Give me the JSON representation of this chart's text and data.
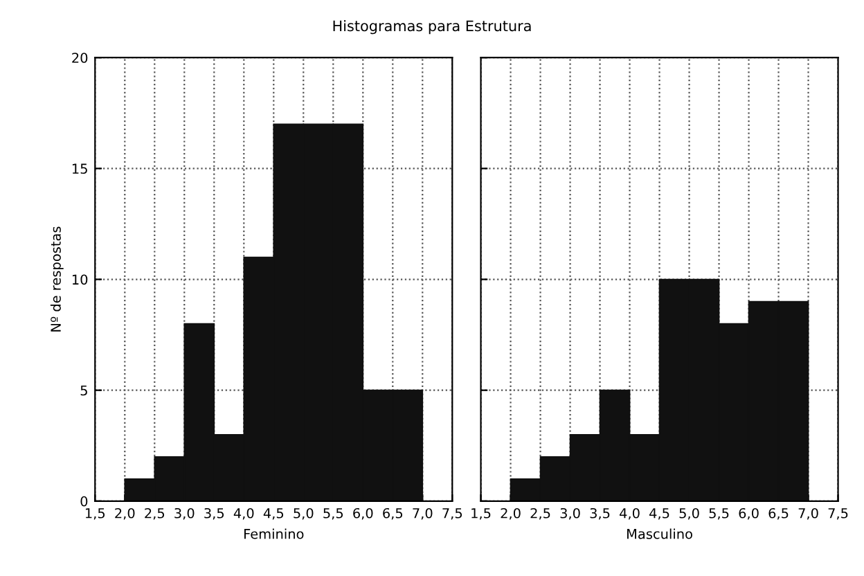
{
  "chart_data": [
    {
      "type": "histogram",
      "title": "Histogramas para Estrutura",
      "xlabel": "Feminino",
      "ylabel": "Nº de respostas",
      "bins": [
        1.5,
        2.0,
        2.5,
        3.0,
        3.5,
        4.0,
        4.5,
        5.0,
        5.5,
        6.0,
        6.5,
        7.0,
        7.5
      ],
      "values": [
        0,
        1,
        2,
        8,
        3,
        11,
        17,
        17,
        17,
        5,
        5,
        0
      ],
      "color": "#111111",
      "xlim": [
        1.5,
        7.5
      ],
      "xticks": [
        {
          "value": 1.5,
          "label": "1,5"
        },
        {
          "value": 2.0,
          "label": "2,0"
        },
        {
          "value": 2.5,
          "label": "2,5"
        },
        {
          "value": 3.0,
          "label": "3,0"
        },
        {
          "value": 3.5,
          "label": "3,5"
        },
        {
          "value": 4.0,
          "label": "4,0"
        },
        {
          "value": 4.5,
          "label": "4,5"
        },
        {
          "value": 5.0,
          "label": "5,0"
        },
        {
          "value": 5.5,
          "label": "5,5"
        },
        {
          "value": 6.0,
          "label": "6,0"
        },
        {
          "value": 6.5,
          "label": "6,5"
        },
        {
          "value": 7.0,
          "label": "7,0"
        },
        {
          "value": 7.5,
          "label": "7,5"
        }
      ],
      "ylim": [
        0,
        20
      ],
      "yticks": [
        0,
        5,
        10,
        15,
        20
      ],
      "grid": true
    },
    {
      "type": "histogram",
      "xlabel": "Masculino",
      "bins": [
        1.5,
        2.0,
        2.5,
        3.0,
        3.5,
        4.0,
        4.5,
        5.0,
        5.5,
        6.0,
        6.5,
        7.0,
        7.5
      ],
      "values": [
        0,
        1,
        2,
        3,
        5,
        3,
        10,
        10,
        8,
        9,
        9,
        0
      ],
      "color": "#111111",
      "xlim": [
        1.5,
        7.5
      ],
      "xticks": [
        {
          "value": 1.5,
          "label": "1,5"
        },
        {
          "value": 2.0,
          "label": "2,0"
        },
        {
          "value": 2.5,
          "label": "2,5"
        },
        {
          "value": 3.0,
          "label": "3,0"
        },
        {
          "value": 3.5,
          "label": "3,5"
        },
        {
          "value": 4.0,
          "label": "4,0"
        },
        {
          "value": 4.5,
          "label": "4,5"
        },
        {
          "value": 5.0,
          "label": "5,0"
        },
        {
          "value": 5.5,
          "label": "5,5"
        },
        {
          "value": 6.0,
          "label": "6,0"
        },
        {
          "value": 6.5,
          "label": "6,5"
        },
        {
          "value": 7.0,
          "label": "7,0"
        },
        {
          "value": 7.5,
          "label": "7,5"
        }
      ],
      "ylim": [
        0,
        20
      ],
      "yticks": [
        0,
        5,
        10,
        15,
        20
      ],
      "grid": true,
      "tick_labels": "x"
    }
  ]
}
